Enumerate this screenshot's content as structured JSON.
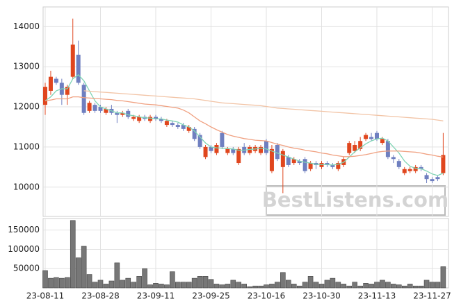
{
  "chart_data": [
    {
      "type": "candlestick",
      "watermark": "BestListens.com",
      "up_color": "#e0461e",
      "down_color": "#6f7fc0",
      "open": [
        12050,
        12400,
        12700,
        12600,
        12300,
        12750,
        13300,
        12550,
        11900,
        12050,
        12000,
        11850,
        11950,
        11850,
        11800,
        11900,
        11700,
        11650,
        11750,
        11650,
        11750,
        11700,
        11550,
        11600,
        11550,
        11550,
        11400,
        11450,
        11300,
        10750,
        11000,
        10850,
        11350,
        10850,
        10950,
        10600,
        11000,
        10850,
        10900,
        10850,
        11150,
        10400,
        11050,
        10500,
        10750,
        10600,
        10650,
        10700,
        10450,
        10600,
        10500,
        10600,
        10550,
        10450,
        10550,
        10850,
        10900,
        10950,
        11200,
        11250,
        11350,
        11100,
        11150,
        10750,
        10650,
        10350,
        10400,
        10400,
        10500,
        10300,
        10200,
        10250,
        10350
      ],
      "high": [
        12600,
        12900,
        12750,
        12700,
        12550,
        14200,
        13650,
        12600,
        12150,
        12100,
        12050,
        12000,
        12050,
        11900,
        11900,
        11950,
        11800,
        11800,
        11800,
        11800,
        11800,
        11750,
        11700,
        11650,
        11600,
        11600,
        11550,
        11500,
        11350,
        11050,
        11050,
        11100,
        11400,
        11000,
        11000,
        11000,
        11100,
        11050,
        11050,
        11050,
        11200,
        11050,
        11100,
        10950,
        10800,
        10750,
        10700,
        10750,
        10650,
        10650,
        10650,
        10650,
        10600,
        10650,
        10750,
        11150,
        11150,
        11250,
        11350,
        11350,
        11400,
        11250,
        11200,
        10800,
        10700,
        10500,
        10500,
        10550,
        10550,
        10350,
        10250,
        10300,
        11350
      ],
      "low": [
        11800,
        12300,
        12550,
        12050,
        12050,
        12700,
        12550,
        11800,
        11850,
        11850,
        11850,
        11800,
        11800,
        11600,
        11750,
        11700,
        11650,
        11600,
        11650,
        11600,
        11650,
        11600,
        11500,
        11500,
        11450,
        11400,
        11350,
        11150,
        10950,
        10700,
        10850,
        10800,
        10950,
        10800,
        10800,
        10550,
        10800,
        10800,
        10850,
        10800,
        10800,
        10350,
        10650,
        9850,
        10500,
        10550,
        10550,
        10350,
        10400,
        10450,
        10450,
        10500,
        10450,
        10400,
        10500,
        10800,
        10850,
        10900,
        11150,
        11150,
        11150,
        11050,
        10700,
        10600,
        10450,
        10300,
        10350,
        10350,
        10400,
        10100,
        10100,
        10150,
        10300
      ],
      "close": [
        12500,
        12750,
        12600,
        12300,
        12500,
        13550,
        12600,
        11850,
        12100,
        11900,
        11900,
        11950,
        11850,
        11800,
        11850,
        11750,
        11750,
        11750,
        11700,
        11750,
        11700,
        11650,
        11650,
        11550,
        11500,
        11450,
        11500,
        11200,
        11000,
        11000,
        10900,
        11050,
        11000,
        10950,
        10850,
        10950,
        10850,
        11000,
        11000,
        11000,
        10850,
        10950,
        10700,
        10900,
        10550,
        10700,
        10600,
        10400,
        10600,
        10550,
        10600,
        10550,
        10500,
        10600,
        10700,
        11100,
        11050,
        11150,
        11300,
        11200,
        11200,
        11200,
        10750,
        10700,
        10500,
        10450,
        10450,
        10500,
        10450,
        10200,
        10150,
        10200,
        10800
      ],
      "series": [
        {
          "color": "#7fd4b4",
          "values": [
            12150,
            12250,
            12400,
            12450,
            12450,
            12700,
            12800,
            12650,
            12400,
            12150,
            12000,
            11950,
            11900,
            11850,
            11850,
            11800,
            11780,
            11750,
            11730,
            11720,
            11700,
            11700,
            11670,
            11650,
            11620,
            11550,
            11500,
            11400,
            11250,
            11100,
            11000,
            10980,
            10970,
            10960,
            10950,
            10920,
            10920,
            10940,
            10950,
            10970,
            10950,
            10900,
            10850,
            10800,
            10750,
            10700,
            10650,
            10620,
            10600,
            10570,
            10560,
            10560,
            10550,
            10570,
            10620,
            10750,
            10880,
            10980,
            11080,
            11150,
            11200,
            11220,
            11150,
            11000,
            10850,
            10650,
            10520,
            10470,
            10460,
            10400,
            10330,
            10290,
            10350
          ]
        },
        {
          "color": "#f0a080",
          "values": [
            12150,
            12170,
            12200,
            12200,
            12200,
            12250,
            12250,
            12230,
            12220,
            12210,
            12200,
            12190,
            12180,
            12160,
            12150,
            12130,
            12110,
            12090,
            12070,
            12060,
            12050,
            12030,
            12010,
            11990,
            11970,
            11920,
            11850,
            11750,
            11650,
            11580,
            11500,
            11430,
            11370,
            11310,
            11270,
            11240,
            11210,
            11190,
            11170,
            11160,
            11150,
            11110,
            11070,
            11040,
            11000,
            10970,
            10950,
            10920,
            10900,
            10880,
            10850,
            10830,
            10800,
            10780,
            10760,
            10760,
            10770,
            10790,
            10810,
            10840,
            10870,
            10890,
            10900,
            10900,
            10900,
            10890,
            10880,
            10870,
            10850,
            10820,
            10800,
            10770,
            10750
          ]
        },
        {
          "color": "#f2c4a6",
          "values": [
            null,
            null,
            null,
            null,
            null,
            null,
            null,
            12400,
            12390,
            12380,
            12370,
            12360,
            12350,
            12340,
            12330,
            12320,
            12310,
            12300,
            12290,
            12280,
            12270,
            12260,
            12250,
            12240,
            12230,
            12220,
            12210,
            12200,
            12180,
            12160,
            12140,
            12120,
            12100,
            12090,
            12080,
            12070,
            12060,
            12050,
            12040,
            12030,
            12010,
            11990,
            11970,
            11960,
            11950,
            11940,
            11930,
            11920,
            11910,
            11900,
            11890,
            11880,
            11870,
            11860,
            11850,
            11840,
            11830,
            11820,
            11810,
            11800,
            11790,
            11780,
            11770,
            11760,
            11750,
            11740,
            11730,
            11720,
            11710,
            11700,
            11690,
            11670,
            11650
          ]
        }
      ],
      "ylim": [
        9270,
        14490
      ],
      "yticks": [
        10000,
        11000,
        12000,
        13000,
        14000
      ],
      "grid": true
    },
    {
      "type": "bar",
      "color": "#777777",
      "categories": [
        "23-08-11",
        null,
        null,
        null,
        null,
        null,
        null,
        null,
        null,
        null,
        "23-08-28",
        null,
        null,
        null,
        null,
        null,
        null,
        null,
        null,
        null,
        "23-09-11",
        null,
        null,
        null,
        null,
        null,
        null,
        null,
        null,
        null,
        "23-09-25",
        null,
        null,
        null,
        null,
        null,
        null,
        null,
        null,
        null,
        "23-10-16",
        null,
        null,
        null,
        null,
        null,
        null,
        null,
        null,
        null,
        "23-10-30",
        null,
        null,
        null,
        null,
        null,
        null,
        null,
        null,
        null,
        "23-11-13",
        null,
        null,
        null,
        null,
        null,
        null,
        null,
        null,
        null,
        "23-11-27",
        null,
        null
      ],
      "values": [
        45000,
        25000,
        27000,
        25000,
        27000,
        175000,
        78000,
        108000,
        35000,
        15000,
        20000,
        10000,
        18000,
        65000,
        20000,
        25000,
        15000,
        30000,
        50000,
        8000,
        12000,
        10000,
        8000,
        42000,
        15000,
        15000,
        15000,
        25000,
        30000,
        30000,
        22000,
        10000,
        8000,
        10000,
        20000,
        15000,
        10000,
        3000,
        5000,
        5000,
        8000,
        10000,
        15000,
        40000,
        20000,
        10000,
        5000,
        15000,
        30000,
        15000,
        10000,
        20000,
        25000,
        15000,
        10000,
        5000,
        15000,
        5000,
        12000,
        10000,
        15000,
        20000,
        15000,
        10000,
        8000,
        5000,
        10000,
        5000,
        5000,
        20000,
        15000,
        15000,
        55000
      ],
      "ylim": [
        0,
        180000
      ],
      "yticks": [
        50000,
        100000,
        150000
      ],
      "grid": true
    }
  ]
}
